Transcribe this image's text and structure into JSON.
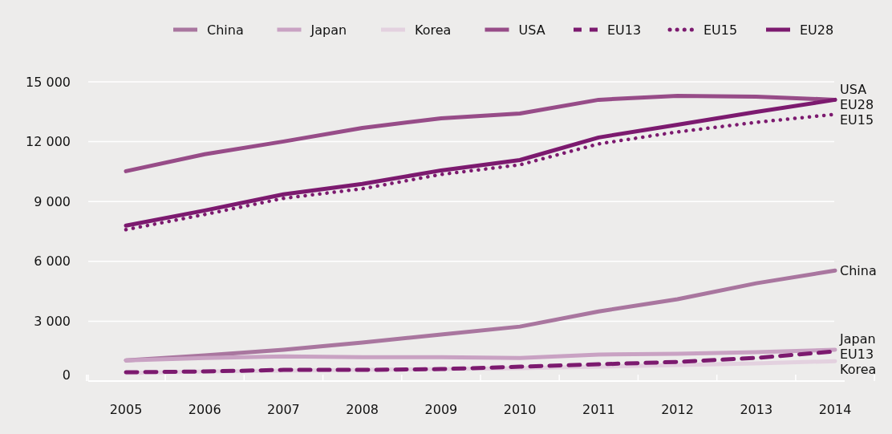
{
  "chart_data": {
    "type": "line",
    "categories": [
      "2005",
      "2006",
      "2007",
      "2008",
      "2009",
      "2010",
      "2011",
      "2012",
      "2013",
      "2014"
    ],
    "series": [
      {
        "name": "China",
        "color": "#a9769f",
        "values": [
          1040,
          1290,
          1570,
          1930,
          2330,
          2730,
          3490,
          4100,
          4900,
          5540
        ]
      },
      {
        "name": "Japan",
        "color": "#c9a2c3",
        "values": [
          1040,
          1160,
          1240,
          1200,
          1200,
          1160,
          1330,
          1370,
          1450,
          1570
        ]
      },
      {
        "name": "Korea",
        "color": "#e3d1df",
        "values": [
          400,
          480,
          520,
          560,
          600,
          640,
          720,
          800,
          880,
          1000
        ]
      },
      {
        "name": "USA",
        "color": "#974c88",
        "values": [
          10520,
          11370,
          12010,
          12690,
          13170,
          13410,
          14100,
          14300,
          14260,
          14100
        ]
      },
      {
        "name": "EU13",
        "color": "#7c1a6f",
        "line_style": "dashed",
        "values": [
          440,
          480,
          560,
          560,
          600,
          720,
          840,
          960,
          1160,
          1490
        ]
      },
      {
        "name": "EU15",
        "color": "#7c1a6f",
        "line_style": "dotted",
        "values": [
          7590,
          8350,
          9160,
          9640,
          10360,
          10840,
          11890,
          12490,
          12970,
          13370
        ]
      },
      {
        "name": "EU28",
        "color": "#7c1a6f",
        "values": [
          7790,
          8550,
          9360,
          9880,
          10560,
          11080,
          12210,
          12850,
          13490,
          14100
        ]
      }
    ],
    "ylim": [
      0,
      15000
    ],
    "yticks": [
      {
        "value": 0,
        "label": "0"
      },
      {
        "value": 3000,
        "label": "3 000"
      },
      {
        "value": 6000,
        "label": "6 000"
      },
      {
        "value": 9000,
        "label": "9 000"
      },
      {
        "value": 12000,
        "label": "12 000"
      },
      {
        "value": 15000,
        "label": "15 000"
      }
    ],
    "grid": "y",
    "legend": "top right",
    "line_style": "solid"
  }
}
